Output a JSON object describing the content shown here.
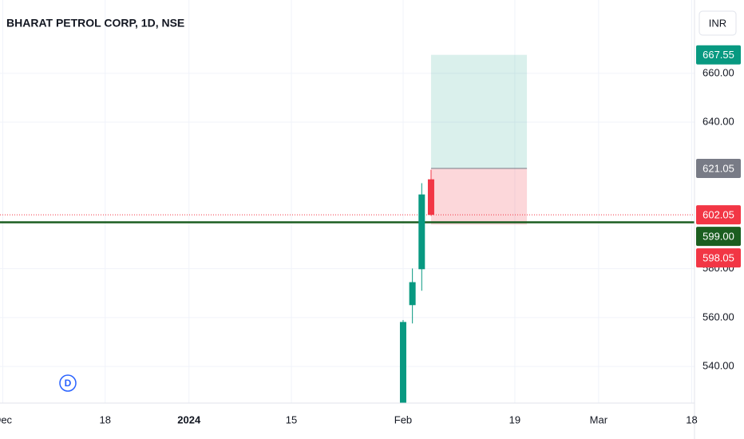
{
  "chart_data": {
    "type": "candlestick",
    "title": "BHARAT PETROL CORP, 1D, NSE",
    "currency": "INR",
    "x": [
      0,
      1,
      2,
      3
    ],
    "open": [
      522,
      565.1,
      579.8,
      616.6
    ],
    "high": [
      559,
      580.1,
      615,
      620.5
    ],
    "low": [
      520,
      557.6,
      571,
      601.6
    ],
    "close": [
      558.2,
      574.5,
      610.4,
      602.05
    ],
    "up_color": "#089981",
    "down_color": "#f23645",
    "xlim": [
      -43.3,
      31.3
    ],
    "xticks": [
      {
        "value": -43,
        "label": "Dec"
      },
      {
        "value": -32,
        "label": "18"
      },
      {
        "value": -23,
        "label": "2024"
      },
      {
        "value": -12,
        "label": "15"
      },
      {
        "value": 0,
        "label": "Feb"
      },
      {
        "value": 12,
        "label": "19"
      },
      {
        "value": 21,
        "label": "Mar"
      },
      {
        "value": 31,
        "label": "18"
      }
    ],
    "ylim": [
      525,
      690
    ],
    "yticks": [
      {
        "value": 540,
        "label": "540.00"
      },
      {
        "value": 560,
        "label": "560.00"
      },
      {
        "value": 580,
        "label": "580.00"
      },
      {
        "value": 640,
        "label": "640.00"
      },
      {
        "value": 660,
        "label": "660.00"
      }
    ],
    "grid": true,
    "position": {
      "target": 667.55,
      "entry": 621.05,
      "stop": 598.05,
      "x_start": 3,
      "x_end": 13.3
    },
    "last_price": 602.05,
    "hline": {
      "value": 599,
      "label": "599.00"
    },
    "marker": "D"
  }
}
